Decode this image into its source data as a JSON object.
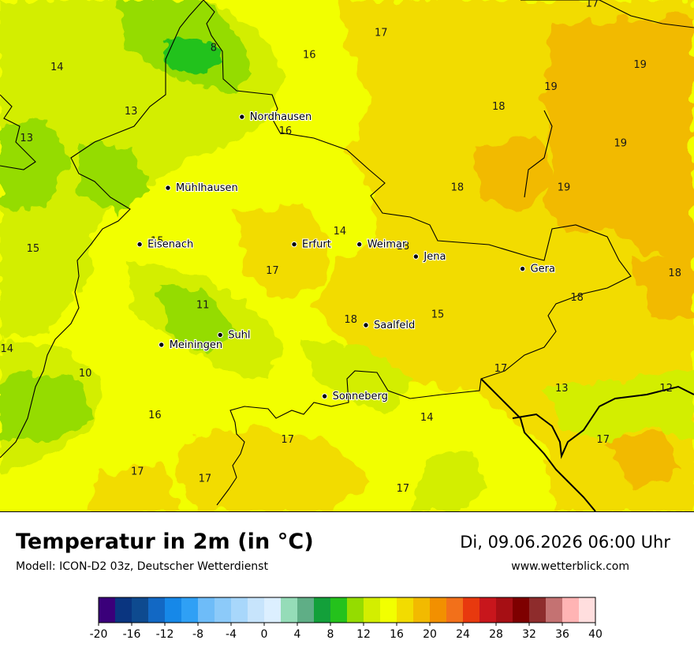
{
  "title": "Temperatur in 2m (in °C)",
  "model": "Modell: ICON-D2 03z, Deutscher Wetterdienst",
  "datetime": "Di, 09.06.2026 06:00 Uhr",
  "website": "www.wetterblick.com",
  "cities": [
    {
      "name": "Nordhausen",
      "lon": 10.79,
      "lat": 51.5
    },
    {
      "name": "Mühlhausen",
      "lon": 10.45,
      "lat": 51.21
    },
    {
      "name": "Eisenach",
      "lon": 10.32,
      "lat": 50.98
    },
    {
      "name": "Erfurt",
      "lon": 11.03,
      "lat": 50.98
    },
    {
      "name": "Weimar",
      "lon": 11.33,
      "lat": 50.98
    },
    {
      "name": "Jena",
      "lon": 11.59,
      "lat": 50.93
    },
    {
      "name": "Gera",
      "lon": 12.08,
      "lat": 50.88
    },
    {
      "name": "Suhl",
      "lon": 10.69,
      "lat": 50.61
    },
    {
      "name": "Meiningen",
      "lon": 10.42,
      "lat": 50.57
    },
    {
      "name": "Saalfeld",
      "lon": 11.36,
      "lat": 50.65
    },
    {
      "name": "Sonneberg",
      "lon": 11.17,
      "lat": 50.36
    }
  ],
  "temperature_values": [
    {
      "value": "17",
      "lon": 11.43,
      "lat": 51.83
    },
    {
      "value": "17",
      "lon": 12.4,
      "lat": 51.95
    },
    {
      "value": "16",
      "lon": 11.1,
      "lat": 51.74
    },
    {
      "value": "8",
      "lon": 10.66,
      "lat": 51.77
    },
    {
      "value": "14",
      "lon": 9.94,
      "lat": 51.69
    },
    {
      "value": "19",
      "lon": 12.62,
      "lat": 51.7
    },
    {
      "value": "19",
      "lon": 12.21,
      "lat": 51.61
    },
    {
      "value": "18",
      "lon": 11.97,
      "lat": 51.53
    },
    {
      "value": "13",
      "lon": 10.28,
      "lat": 51.51
    },
    {
      "value": "16",
      "lon": 10.99,
      "lat": 51.43
    },
    {
      "value": "13",
      "lon": 9.8,
      "lat": 51.4
    },
    {
      "value": "19",
      "lon": 12.53,
      "lat": 51.38
    },
    {
      "value": "18",
      "lon": 11.78,
      "lat": 51.2
    },
    {
      "value": "19",
      "lon": 12.27,
      "lat": 51.2
    },
    {
      "value": "15",
      "lon": 10.4,
      "lat": 50.98
    },
    {
      "value": "14",
      "lon": 11.24,
      "lat": 51.02
    },
    {
      "value": "18",
      "lon": 11.53,
      "lat": 50.96
    },
    {
      "value": "15",
      "lon": 9.83,
      "lat": 50.95
    },
    {
      "value": "17",
      "lon": 10.93,
      "lat": 50.86
    },
    {
      "value": "18",
      "lon": 12.78,
      "lat": 50.85
    },
    {
      "value": "18",
      "lon": 12.33,
      "lat": 50.75
    },
    {
      "value": "11",
      "lon": 10.61,
      "lat": 50.72
    },
    {
      "value": "18",
      "lon": 11.29,
      "lat": 50.66
    },
    {
      "value": "15",
      "lon": 11.69,
      "lat": 50.68
    },
    {
      "value": "14",
      "lon": 9.71,
      "lat": 50.54
    },
    {
      "value": "10",
      "lon": 10.07,
      "lat": 50.44
    },
    {
      "value": "17",
      "lon": 11.98,
      "lat": 50.46
    },
    {
      "value": "13",
      "lon": 12.26,
      "lat": 50.38
    },
    {
      "value": "12",
      "lon": 12.74,
      "lat": 50.38
    },
    {
      "value": "16",
      "lon": 10.39,
      "lat": 50.27
    },
    {
      "value": "14",
      "lon": 11.64,
      "lat": 50.26
    },
    {
      "value": "17",
      "lon": 11.0,
      "lat": 50.17
    },
    {
      "value": "17",
      "lon": 12.45,
      "lat": 50.17
    },
    {
      "value": "17",
      "lon": 10.31,
      "lat": 50.04
    },
    {
      "value": "17",
      "lon": 10.62,
      "lat": 50.01
    },
    {
      "value": "17",
      "lon": 11.53,
      "lat": 49.97
    }
  ],
  "scale": {
    "ticks": [
      "-20",
      "-16",
      "-12",
      "-8",
      "-4",
      "0",
      "4",
      "8",
      "12",
      "16",
      "20",
      "24",
      "28",
      "32",
      "36",
      "40"
    ],
    "min": -20,
    "max": 40,
    "step": 2,
    "colors": [
      "#3a007a",
      "#0a3580",
      "#0e4a8f",
      "#1268c4",
      "#1688e8",
      "#2fa0f5",
      "#6ebcf8",
      "#8ccaf9",
      "#a8d7fb",
      "#c7e4fc",
      "#dcefff",
      "#95dcb8",
      "#5fae86",
      "#13a03a",
      "#24c21c",
      "#95dc00",
      "#d3ee00",
      "#f2ff00",
      "#f2dc00",
      "#f2ba00",
      "#f29000",
      "#f2701a",
      "#e8390e",
      "#c8161c",
      "#a60f14",
      "#7e0000",
      "#8e2c2c",
      "#c47272",
      "#ffb4b4",
      "#ffdede"
    ]
  },
  "colors": {
    "green_dark": "#24c21c",
    "green": "#95dc00",
    "green_light": "#d3ee00",
    "yellow": "#f2ff00",
    "gold": "#f2dc00",
    "orange": "#f2ba00"
  }
}
